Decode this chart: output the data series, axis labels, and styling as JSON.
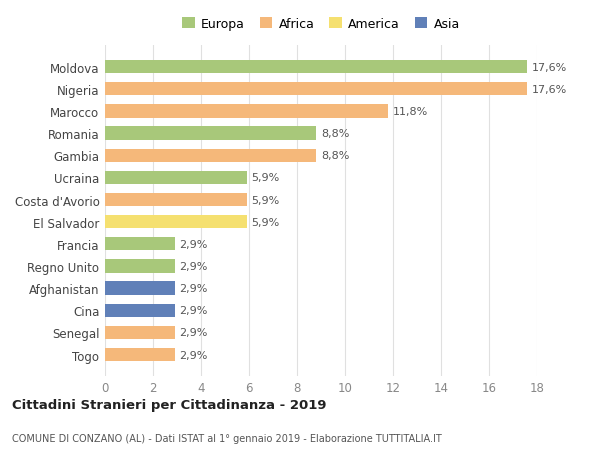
{
  "countries": [
    "Moldova",
    "Nigeria",
    "Marocco",
    "Romania",
    "Gambia",
    "Ucraina",
    "Costa d'Avorio",
    "El Salvador",
    "Francia",
    "Regno Unito",
    "Afghanistan",
    "Cina",
    "Senegal",
    "Togo"
  ],
  "values": [
    17.6,
    17.6,
    11.8,
    8.8,
    8.8,
    5.9,
    5.9,
    5.9,
    2.9,
    2.9,
    2.9,
    2.9,
    2.9,
    2.9
  ],
  "labels": [
    "17,6%",
    "17,6%",
    "11,8%",
    "8,8%",
    "8,8%",
    "5,9%",
    "5,9%",
    "5,9%",
    "2,9%",
    "2,9%",
    "2,9%",
    "2,9%",
    "2,9%",
    "2,9%"
  ],
  "colors": [
    "#a8c87a",
    "#f5b87a",
    "#f5b87a",
    "#a8c87a",
    "#f5b87a",
    "#a8c87a",
    "#f5b87a",
    "#f5e070",
    "#a8c87a",
    "#a8c87a",
    "#6080b8",
    "#6080b8",
    "#f5b87a",
    "#f5b87a"
  ],
  "legend_labels": [
    "Europa",
    "Africa",
    "America",
    "Asia"
  ],
  "legend_colors": [
    "#a8c87a",
    "#f5b87a",
    "#f5e070",
    "#6080b8"
  ],
  "title": "Cittadini Stranieri per Cittadinanza - 2019",
  "subtitle": "COMUNE DI CONZANO (AL) - Dati ISTAT al 1° gennaio 2019 - Elaborazione TUTTITALIA.IT",
  "xlim": [
    0,
    18
  ],
  "xticks": [
    0,
    2,
    4,
    6,
    8,
    10,
    12,
    14,
    16,
    18
  ],
  "background_color": "#ffffff",
  "grid_color": "#e0e0e0"
}
